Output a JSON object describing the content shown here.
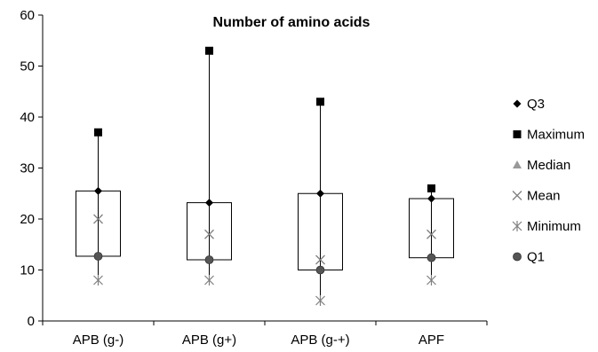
{
  "chart_data": {
    "type": "box",
    "title": "Number of amino acids",
    "categories": [
      "APB (g-)",
      "APB (g+)",
      "APB (g-+)",
      "APF"
    ],
    "ylim": [
      0,
      60
    ],
    "yticks": [
      0,
      10,
      20,
      30,
      40,
      50,
      60
    ],
    "grid": false,
    "legend_position": "right",
    "series": [
      {
        "name": "Q3",
        "values": [
          25.5,
          23.2,
          25.0,
          24.0
        ]
      },
      {
        "name": "Maximum",
        "values": [
          37,
          53,
          43,
          26
        ]
      },
      {
        "name": "Median",
        "values": [
          null,
          null,
          null,
          null
        ]
      },
      {
        "name": "Mean",
        "values": [
          20,
          17,
          12,
          17
        ]
      },
      {
        "name": "Minimum",
        "values": [
          8,
          8,
          4,
          8
        ]
      },
      {
        "name": "Q1",
        "values": [
          12.7,
          12.0,
          10.0,
          12.4
        ]
      }
    ],
    "colors": {
      "q3": "#000000",
      "maximum": "#000000",
      "median": "#999999",
      "mean": "#808080",
      "minimum": "#808080",
      "q1": "#555555",
      "box_stroke": "#000000"
    }
  }
}
